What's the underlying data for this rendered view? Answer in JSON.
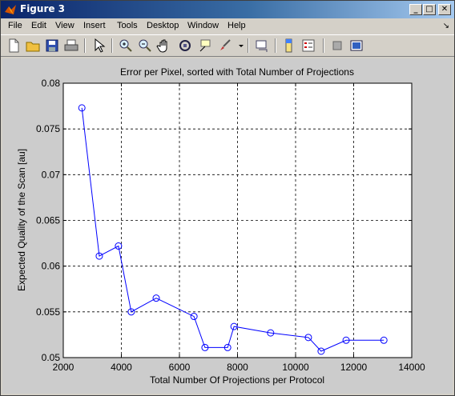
{
  "window": {
    "title": "Figure 3",
    "buttons": {
      "minimize": "_",
      "maximize": "□",
      "close": "✕"
    }
  },
  "menu": {
    "items": [
      "File",
      "Edit",
      "View",
      "Insert",
      "Tools",
      "Desktop",
      "Window",
      "Help"
    ],
    "dock_glyph": "↘"
  },
  "toolbar": {
    "buttons": [
      "new-figure",
      "open-file",
      "save-figure",
      "print-figure",
      "edit-plot",
      "zoom-in",
      "zoom-out",
      "pan",
      "rotate-3d",
      "data-cursor",
      "brush",
      "link-plot",
      "insert-colorbar",
      "insert-legend",
      "hide-plot-tools",
      "show-plot-tools"
    ]
  },
  "chart_data": {
    "type": "line",
    "title": "Error per Pixel, sorted with Total Number of Projections",
    "xlabel": "Total Number Of Projections per Protocol",
    "ylabel": "Expected Quality of the Scan [au]",
    "xlim": [
      2000,
      14000
    ],
    "ylim": [
      0.05,
      0.08
    ],
    "xticks": [
      2000,
      4000,
      6000,
      8000,
      10000,
      12000,
      14000
    ],
    "yticks": [
      0.05,
      0.055,
      0.06,
      0.065,
      0.07,
      0.075,
      0.08
    ],
    "xtick_labels": [
      "2000",
      "4000",
      "6000",
      "8000",
      "10000",
      "12000",
      "14000"
    ],
    "ytick_labels": [
      "0.05",
      "0.055",
      "0.06",
      "0.065",
      "0.07",
      "0.075",
      "0.08"
    ],
    "grid": true,
    "line_color": "#0000ff",
    "marker": "circle",
    "series": [
      {
        "x": [
          2640,
          3240,
          3900,
          4340,
          5200,
          6500,
          6880,
          7660,
          7880,
          9140,
          10440,
          10880,
          11740,
          13040
        ],
        "y": [
          0.0773,
          0.0611,
          0.0622,
          0.055,
          0.0565,
          0.0545,
          0.0511,
          0.0511,
          0.0534,
          0.0527,
          0.0522,
          0.0507,
          0.0519,
          0.0519
        ]
      }
    ]
  }
}
